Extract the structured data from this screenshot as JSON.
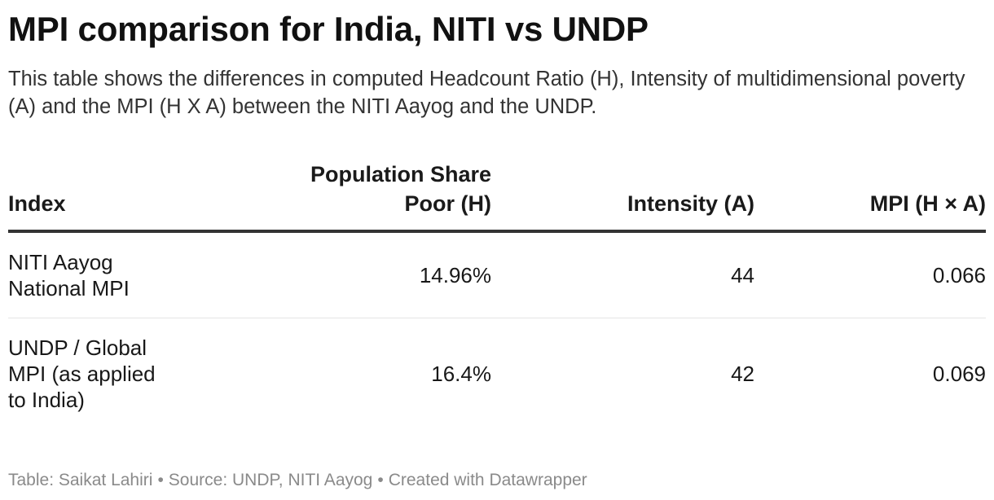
{
  "title": "MPI comparison for India, NITI vs UNDP",
  "subtitle": "This table shows the differences in computed Headcount Ratio (H), Intensity of multidimensional poverty (A) and the MPI (H X A) between the NITI Aayog and the UNDP.",
  "chart_data": {
    "type": "table",
    "columns": [
      {
        "key": "index",
        "label": "Index"
      },
      {
        "key": "headcount",
        "label_lines": [
          "Population Share",
          "Poor (H)"
        ]
      },
      {
        "key": "intensity",
        "label": "Intensity (A)"
      },
      {
        "key": "mpi",
        "label": "MPI (H × A)"
      }
    ],
    "rows": [
      {
        "index_lines": [
          "NITI Aayog",
          "National MPI"
        ],
        "headcount": "14.96%",
        "intensity": "44",
        "mpi": "0.066"
      },
      {
        "index_lines": [
          "UNDP / Global",
          "MPI (as applied",
          "to India)"
        ],
        "headcount": "16.4%",
        "intensity": "42",
        "mpi": "0.069"
      }
    ]
  },
  "footer": {
    "credit": "Table: Saikat Lahiri",
    "source": "Source: UNDP, NITI Aayog",
    "tool": "Created with Datawrapper",
    "separator": "•"
  }
}
